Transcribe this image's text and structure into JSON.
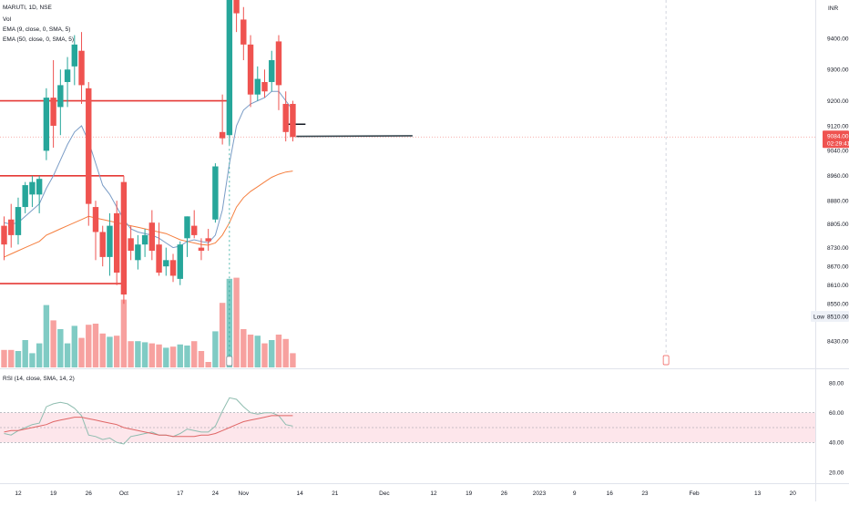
{
  "header": {
    "symbol": "MARUTI, 1D, NSE",
    "studies": [
      "Vol",
      "EMA (9, close, 0, SMA, 5)",
      "EMA (50, close, 0, SMA, 5)"
    ],
    "rsi": "RSI (14, close, SMA, 14, 2)"
  },
  "colors": {
    "up": "#26a69a",
    "down": "#ef5350",
    "vol_up": "#80cbc4",
    "vol_down": "#f7a19f",
    "ema9": "#7a9cc6",
    "ema50": "#f57f3f",
    "rsi_line": "#8fbdb0",
    "rsi_sma": "#e06666",
    "rsi_band": "#fde6eb",
    "hline": "#e53935",
    "trend": "#37474f",
    "price_bg": "#ef5350"
  },
  "chart_data": [
    {
      "type": "candlestick",
      "title": "MARUTI, 1D, NSE",
      "currency": "INR",
      "ylim": [
        8390,
        9560
      ],
      "y_ticks": [
        9400,
        9300,
        9200,
        9120,
        9040,
        8960,
        8880,
        8805,
        8730,
        8670,
        8610,
        8550,
        8510,
        8430
      ],
      "price_label": {
        "value": "9084.00",
        "countdown": "02:29:41"
      },
      "low_label": {
        "text": "Low",
        "value": "8510.00"
      },
      "x_ticks": [
        {
          "label": "12",
          "i": 2
        },
        {
          "label": "19",
          "i": 7
        },
        {
          "label": "26",
          "i": 12
        },
        {
          "label": "Oct",
          "i": 17
        },
        {
          "label": "17",
          "i": 25
        },
        {
          "label": "24",
          "i": 30
        },
        {
          "label": "Nov",
          "i": 34
        },
        {
          "label": "14",
          "i": 42
        },
        {
          "label": "21",
          "i": 47
        },
        {
          "label": "Dec",
          "i": 54
        },
        {
          "label": "12",
          "i": 61
        },
        {
          "label": "19",
          "i": 66
        },
        {
          "label": "26",
          "i": 71
        },
        {
          "label": "2023",
          "i": 76
        },
        {
          "label": "9",
          "i": 81
        },
        {
          "label": "16",
          "i": 86
        },
        {
          "label": "23",
          "i": 91
        },
        {
          "label": "Feb",
          "i": 98
        },
        {
          "label": "13",
          "i": 107
        },
        {
          "label": "20",
          "i": 112
        }
      ],
      "candles": [
        {
          "o": 8800,
          "h": 8830,
          "l": 8690,
          "c": 8740
        },
        {
          "o": 8820,
          "h": 8870,
          "l": 8730,
          "c": 8770
        },
        {
          "o": 8770,
          "h": 8890,
          "l": 8740,
          "c": 8860
        },
        {
          "o": 8860,
          "h": 8940,
          "l": 8840,
          "c": 8930
        },
        {
          "o": 8900,
          "h": 8960,
          "l": 8860,
          "c": 8940
        },
        {
          "o": 8900,
          "h": 8960,
          "l": 8840,
          "c": 8950
        },
        {
          "o": 9040,
          "h": 9240,
          "l": 9010,
          "c": 9210
        },
        {
          "o": 9210,
          "h": 9330,
          "l": 9050,
          "c": 9120
        },
        {
          "o": 9180,
          "h": 9300,
          "l": 9090,
          "c": 9250
        },
        {
          "o": 9260,
          "h": 9340,
          "l": 9180,
          "c": 9300
        },
        {
          "o": 9310,
          "h": 9410,
          "l": 9250,
          "c": 9380
        },
        {
          "o": 9360,
          "h": 9420,
          "l": 9190,
          "c": 9250
        },
        {
          "o": 9240,
          "h": 9260,
          "l": 8800,
          "c": 8870
        },
        {
          "o": 8860,
          "h": 8880,
          "l": 8690,
          "c": 8780
        },
        {
          "o": 8780,
          "h": 8800,
          "l": 8670,
          "c": 8700
        },
        {
          "o": 8700,
          "h": 8840,
          "l": 8640,
          "c": 8800
        },
        {
          "o": 8840,
          "h": 8880,
          "l": 8610,
          "c": 8650
        },
        {
          "o": 8940,
          "h": 8960,
          "l": 8550,
          "c": 8580
        },
        {
          "o": 8760,
          "h": 8800,
          "l": 8690,
          "c": 8720
        },
        {
          "o": 8690,
          "h": 8770,
          "l": 8660,
          "c": 8740
        },
        {
          "o": 8740,
          "h": 8790,
          "l": 8700,
          "c": 8770
        },
        {
          "o": 8810,
          "h": 8850,
          "l": 8690,
          "c": 8720
        },
        {
          "o": 8740,
          "h": 8810,
          "l": 8640,
          "c": 8650
        },
        {
          "o": 8670,
          "h": 8730,
          "l": 8640,
          "c": 8690
        },
        {
          "o": 8690,
          "h": 8710,
          "l": 8620,
          "c": 8640
        },
        {
          "o": 8630,
          "h": 8750,
          "l": 8610,
          "c": 8740
        },
        {
          "o": 8760,
          "h": 8830,
          "l": 8700,
          "c": 8830
        },
        {
          "o": 8800,
          "h": 8850,
          "l": 8760,
          "c": 8770
        },
        {
          "o": 8730,
          "h": 8760,
          "l": 8690,
          "c": 8720
        },
        {
          "o": 8760,
          "h": 8790,
          "l": 8720,
          "c": 8750
        },
        {
          "o": 8820,
          "h": 9000,
          "l": 8810,
          "c": 8990
        },
        {
          "o": 9100,
          "h": 9220,
          "l": 9060,
          "c": 9080
        },
        {
          "o": 9090,
          "h": 9550,
          "l": 9060,
          "c": 9540
        },
        {
          "o": 9540,
          "h": 9560,
          "l": 9420,
          "c": 9480
        },
        {
          "o": 9460,
          "h": 9500,
          "l": 9330,
          "c": 9380
        },
        {
          "o": 9380,
          "h": 9410,
          "l": 9180,
          "c": 9220
        },
        {
          "o": 9220,
          "h": 9310,
          "l": 9200,
          "c": 9270
        },
        {
          "o": 9260,
          "h": 9300,
          "l": 9210,
          "c": 9230
        },
        {
          "o": 9260,
          "h": 9360,
          "l": 9230,
          "c": 9330
        },
        {
          "o": 9390,
          "h": 9410,
          "l": 9170,
          "c": 9250
        },
        {
          "o": 9190,
          "h": 9230,
          "l": 9070,
          "c": 9100
        },
        {
          "o": 9190,
          "h": 9200,
          "l": 9070,
          "c": 9084
        }
      ],
      "ema9": [
        8810,
        8805,
        8810,
        8830,
        8850,
        8870,
        8920,
        8960,
        9010,
        9060,
        9100,
        9120,
        9070,
        9000,
        8930,
        8900,
        8860,
        8820,
        8790,
        8780,
        8775,
        8770,
        8760,
        8745,
        8730,
        8735,
        8750,
        8755,
        8750,
        8745,
        8770,
        8850,
        9000,
        9120,
        9170,
        9190,
        9200,
        9210,
        9230,
        9230,
        9200,
        9170
      ],
      "ema50": [
        8700,
        8710,
        8720,
        8730,
        8740,
        8750,
        8770,
        8780,
        8790,
        8800,
        8810,
        8820,
        8830,
        8825,
        8820,
        8815,
        8810,
        8805,
        8800,
        8795,
        8790,
        8785,
        8780,
        8775,
        8765,
        8755,
        8750,
        8745,
        8740,
        8738,
        8745,
        8770,
        8810,
        8860,
        8890,
        8910,
        8925,
        8940,
        8955,
        8965,
        8972,
        8975
      ],
      "volume": [
        0.16,
        0.16,
        0.15,
        0.25,
        0.13,
        0.22,
        0.57,
        0.43,
        0.35,
        0.22,
        0.38,
        0.27,
        0.39,
        0.4,
        0.31,
        0.28,
        0.29,
        0.62,
        0.24,
        0.24,
        0.23,
        0.22,
        0.21,
        0.18,
        0.19,
        0.21,
        0.2,
        0.24,
        0.15,
        0.05,
        0.33,
        0.59,
        0.81,
        0.82,
        0.35,
        0.3,
        0.29,
        0.22,
        0.25,
        0.3,
        0.26,
        0.13
      ],
      "horizontal_lines": [
        {
          "price": 9200,
          "from_i": -3,
          "to_i": 32
        },
        {
          "price": 8960,
          "from_i": -3,
          "to_i": 17
        },
        {
          "price": 8615,
          "from_i": -3,
          "to_i": 17
        }
      ],
      "trend_line": {
        "from": {
          "i": 41.5,
          "price": 9086
        },
        "to": {
          "i": 58,
          "price": 9088
        }
      },
      "vertical_marker": {
        "i": 32
      },
      "vertical_future": {
        "i": 94
      }
    },
    {
      "type": "line",
      "title": "RSI (14, close, SMA, 14, 2)",
      "ylim": [
        20,
        80
      ],
      "y_ticks": [
        80,
        60,
        40,
        20
      ],
      "band": [
        40,
        60
      ],
      "midline": 50,
      "series": [
        {
          "name": "RSI",
          "values": [
            46,
            45,
            48,
            50,
            52,
            53,
            64,
            66,
            67,
            66,
            63,
            58,
            45,
            44,
            42,
            43,
            40,
            39,
            44,
            45,
            46,
            47,
            45,
            45,
            44,
            46,
            49,
            48,
            47,
            47,
            51,
            61,
            70,
            69,
            64,
            60,
            59,
            60,
            60,
            58,
            52,
            51
          ]
        },
        {
          "name": "RSI-based MA",
          "values": [
            47,
            48,
            48,
            49,
            50,
            51,
            52,
            54,
            55,
            56,
            57,
            57,
            56,
            55,
            54,
            53,
            52,
            50,
            49,
            48,
            47,
            46,
            45,
            45,
            44,
            44,
            44,
            44,
            45,
            45,
            46,
            48,
            50,
            52,
            54,
            55,
            56,
            57,
            58,
            58,
            58,
            58
          ]
        }
      ]
    }
  ]
}
